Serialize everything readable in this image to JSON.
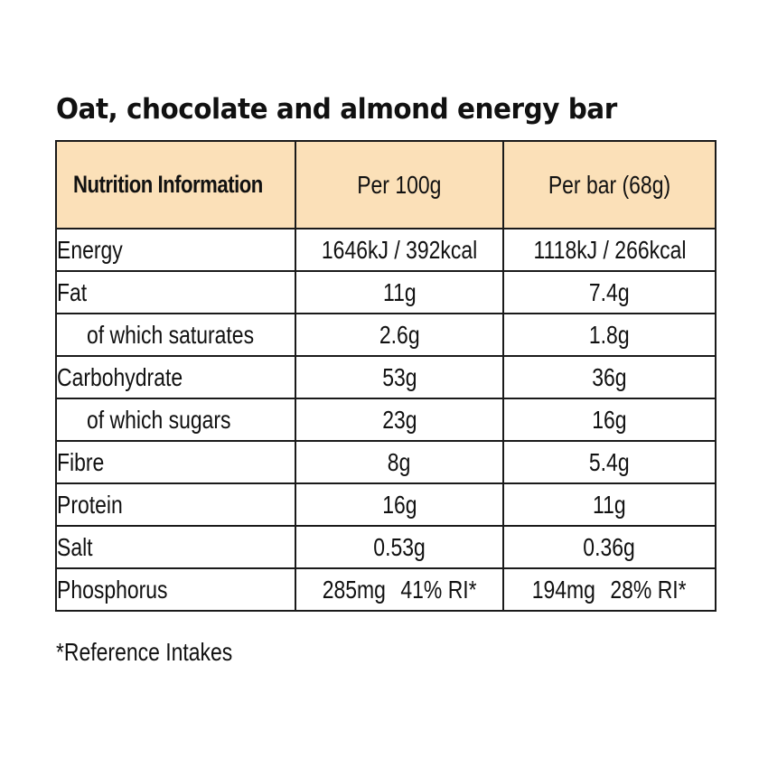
{
  "title": "Oat, chocolate and almond energy bar",
  "header": {
    "label": "Nutrition Information",
    "per100": "Per 100g",
    "perBar": "Per bar (68g)"
  },
  "rows": [
    {
      "label": "Energy",
      "per100": "1646kJ / 392kcal",
      "perBar": "1118kJ / 266kcal"
    },
    {
      "label": "Fat",
      "per100": "11g",
      "perBar": "7.4g"
    },
    {
      "label": "of which saturates",
      "per100": "2.6g",
      "perBar": "1.8g"
    },
    {
      "label": "Carbohydrate",
      "per100": "53g",
      "perBar": "36g"
    },
    {
      "label": "of which sugars",
      "per100": "23g",
      "perBar": "16g"
    },
    {
      "label": "Fibre",
      "per100": "8g",
      "perBar": "5.4g"
    },
    {
      "label": "Protein",
      "per100": "16g",
      "perBar": "11g"
    },
    {
      "label": "Salt",
      "per100": "0.53g",
      "perBar": "0.36g"
    },
    {
      "label": "Phosphorus",
      "per100": "285mg",
      "per100_ri": "41% RI*",
      "perBar": "194mg",
      "perBar_ri": "28% RI*"
    }
  ],
  "footnote": "*Reference Intakes",
  "colors": {
    "header_bg": "#fbe0b8",
    "border": "#1a1a1a",
    "text": "#111111"
  }
}
